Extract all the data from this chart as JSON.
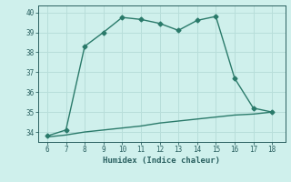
{
  "xlabel": "Humidex (Indice chaleur)",
  "ylabel": "",
  "x": [
    6,
    7,
    8,
    9,
    10,
    11,
    12,
    13,
    14,
    15,
    16,
    17,
    18
  ],
  "y_upper": [
    33.8,
    34.1,
    38.3,
    39.0,
    39.75,
    39.65,
    39.45,
    39.1,
    39.6,
    39.8,
    36.7,
    35.2,
    35.0
  ],
  "y_lower": [
    33.75,
    33.85,
    34.0,
    34.1,
    34.2,
    34.3,
    34.45,
    34.55,
    34.65,
    34.75,
    34.85,
    34.9,
    35.0
  ],
  "line_color": "#2a7a6a",
  "bg_color": "#cff0ec",
  "grid_color": "#b8deda",
  "text_color": "#2a6060",
  "xlim": [
    5.5,
    18.7
  ],
  "ylim": [
    33.5,
    40.35
  ],
  "xticks": [
    6,
    7,
    8,
    9,
    10,
    11,
    12,
    13,
    14,
    15,
    16,
    17,
    18
  ],
  "yticks": [
    34,
    35,
    36,
    37,
    38,
    39,
    40
  ],
  "marker": "D",
  "markersize": 2.5,
  "linewidth": 1.0
}
